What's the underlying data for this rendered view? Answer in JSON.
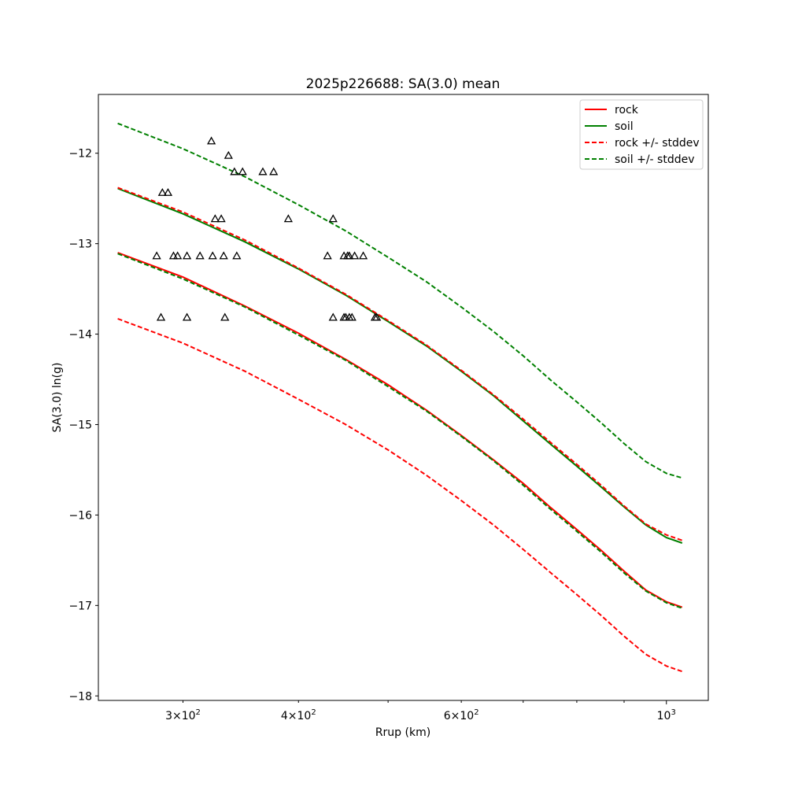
{
  "chart_data": {
    "type": "line",
    "title": "2025p226688: SA(3.0) mean",
    "xlabel": "Rrup (km)",
    "ylabel": "SA(3.0) ln(g)",
    "xscale": "log",
    "xlim": [
      243,
      1110
    ],
    "ylim": [
      -18.05,
      -11.35
    ],
    "x_major_ticks": [
      {
        "value": 1000,
        "base": "10",
        "exp": "3"
      }
    ],
    "x_minor_ticks": [
      {
        "value": 300,
        "mant": "3",
        "base": "10",
        "exp": "2",
        "labeled": true
      },
      {
        "value": 400,
        "mant": "4",
        "base": "10",
        "exp": "2",
        "labeled": true
      },
      {
        "value": 500,
        "labeled": false
      },
      {
        "value": 600,
        "mant": "6",
        "base": "10",
        "exp": "2",
        "labeled": true
      },
      {
        "value": 700,
        "labeled": false
      },
      {
        "value": 800,
        "labeled": false
      },
      {
        "value": 900,
        "labeled": false
      }
    ],
    "y_ticks": [
      {
        "value": -18,
        "label": "−18"
      },
      {
        "value": -17,
        "label": "−17"
      },
      {
        "value": -16,
        "label": "−16"
      },
      {
        "value": -15,
        "label": "−15"
      },
      {
        "value": -14,
        "label": "−14"
      },
      {
        "value": -13,
        "label": "−13"
      },
      {
        "value": -12,
        "label": "−12"
      }
    ],
    "grid": false,
    "legend_position": "top-right",
    "legend": [
      {
        "label": "rock",
        "color": "#ff0000",
        "dashed": false
      },
      {
        "label": "soil",
        "color": "#008000",
        "dashed": false
      },
      {
        "label": "rock +/- stddev",
        "color": "#ff0000",
        "dashed": true
      },
      {
        "label": "soil +/- stddev",
        "color": "#008000",
        "dashed": true
      }
    ],
    "series": [
      {
        "color": "#ff0000",
        "dashed": false,
        "x": [
          255,
          300,
          350,
          400,
          450,
          500,
          550,
          600,
          650,
          700,
          750,
          800,
          850,
          900,
          950,
          1000,
          1040
        ],
        "y": [
          -13.1,
          -13.37,
          -13.69,
          -13.99,
          -14.28,
          -14.56,
          -14.84,
          -15.12,
          -15.39,
          -15.65,
          -15.92,
          -16.16,
          -16.39,
          -16.62,
          -16.83,
          -16.96,
          -17.02
        ]
      },
      {
        "color": "#008000",
        "dashed": false,
        "x": [
          255,
          300,
          350,
          400,
          450,
          500,
          550,
          600,
          650,
          700,
          750,
          800,
          850,
          900,
          950,
          1000,
          1040
        ],
        "y": [
          -12.39,
          -12.67,
          -12.98,
          -13.28,
          -13.57,
          -13.86,
          -14.13,
          -14.41,
          -14.68,
          -14.96,
          -15.22,
          -15.46,
          -15.69,
          -15.91,
          -16.11,
          -16.25,
          -16.31
        ]
      },
      {
        "color": "#ff0000",
        "dashed": true,
        "x": [
          255,
          300,
          350,
          400,
          450,
          500,
          550,
          600,
          650,
          700,
          750,
          800,
          850,
          900,
          950,
          1000,
          1040
        ],
        "y": [
          -12.38,
          -12.65,
          -12.96,
          -13.27,
          -13.56,
          -13.85,
          -14.12,
          -14.4,
          -14.67,
          -14.94,
          -15.2,
          -15.44,
          -15.67,
          -15.9,
          -16.1,
          -16.22,
          -16.28
        ]
      },
      {
        "color": "#ff0000",
        "dashed": true,
        "x": [
          255,
          300,
          350,
          400,
          450,
          500,
          550,
          600,
          650,
          700,
          750,
          800,
          850,
          900,
          950,
          1000,
          1040
        ],
        "y": [
          -13.83,
          -14.1,
          -14.41,
          -14.72,
          -15.0,
          -15.28,
          -15.56,
          -15.84,
          -16.11,
          -16.38,
          -16.64,
          -16.88,
          -17.11,
          -17.34,
          -17.54,
          -17.67,
          -17.73
        ]
      },
      {
        "color": "#008000",
        "dashed": true,
        "x": [
          255,
          300,
          350,
          400,
          450,
          500,
          550,
          600,
          650,
          700,
          750,
          800,
          850,
          900,
          950,
          1000,
          1040
        ],
        "y": [
          -11.67,
          -11.95,
          -12.26,
          -12.57,
          -12.86,
          -13.15,
          -13.42,
          -13.7,
          -13.97,
          -14.24,
          -14.51,
          -14.75,
          -14.98,
          -15.21,
          -15.41,
          -15.54,
          -15.59
        ]
      },
      {
        "color": "#008000",
        "dashed": true,
        "x": [
          255,
          300,
          350,
          400,
          450,
          500,
          550,
          600,
          650,
          700,
          750,
          800,
          850,
          900,
          950,
          1000,
          1040
        ],
        "y": [
          -13.11,
          -13.39,
          -13.7,
          -14.01,
          -14.29,
          -14.58,
          -14.85,
          -15.13,
          -15.4,
          -15.67,
          -15.94,
          -16.18,
          -16.41,
          -16.64,
          -16.84,
          -16.97,
          -17.03
        ]
      }
    ],
    "observations": {
      "marker": "triangle",
      "color": "#000000",
      "points": [
        {
          "x": 322,
          "y": -11.87
        },
        {
          "x": 336,
          "y": -12.03
        },
        {
          "x": 341,
          "y": -12.21
        },
        {
          "x": 348,
          "y": -12.21
        },
        {
          "x": 366,
          "y": -12.21
        },
        {
          "x": 376,
          "y": -12.21
        },
        {
          "x": 285,
          "y": -12.44
        },
        {
          "x": 289,
          "y": -12.44
        },
        {
          "x": 325,
          "y": -12.73
        },
        {
          "x": 330,
          "y": -12.73
        },
        {
          "x": 390,
          "y": -12.73
        },
        {
          "x": 436,
          "y": -12.73
        },
        {
          "x": 281,
          "y": -13.14
        },
        {
          "x": 293,
          "y": -13.14
        },
        {
          "x": 296,
          "y": -13.14
        },
        {
          "x": 303,
          "y": -13.14
        },
        {
          "x": 313,
          "y": -13.14
        },
        {
          "x": 323,
          "y": -13.14
        },
        {
          "x": 332,
          "y": -13.14
        },
        {
          "x": 343,
          "y": -13.14
        },
        {
          "x": 430,
          "y": -13.14
        },
        {
          "x": 448,
          "y": -13.14
        },
        {
          "x": 452,
          "y": -13.14
        },
        {
          "x": 454,
          "y": -13.14
        },
        {
          "x": 460,
          "y": -13.14
        },
        {
          "x": 470,
          "y": -13.14
        },
        {
          "x": 284,
          "y": -13.82
        },
        {
          "x": 303,
          "y": -13.82
        },
        {
          "x": 333,
          "y": -13.82
        },
        {
          "x": 436,
          "y": -13.82
        },
        {
          "x": 448,
          "y": -13.82
        },
        {
          "x": 450,
          "y": -13.82
        },
        {
          "x": 454,
          "y": -13.82
        },
        {
          "x": 457,
          "y": -13.82
        },
        {
          "x": 484,
          "y": -13.82
        },
        {
          "x": 486,
          "y": -13.82
        }
      ]
    }
  }
}
